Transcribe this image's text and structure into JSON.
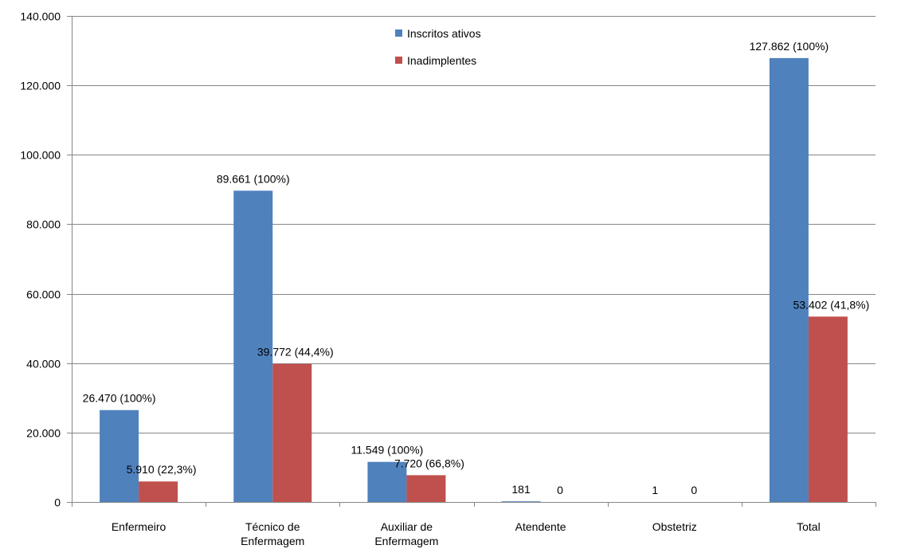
{
  "chart_data": {
    "type": "bar",
    "categories": [
      [
        "Enfermeiro"
      ],
      [
        "Técnico de",
        "Enfermagem"
      ],
      [
        "Auxiliar de",
        "Enfermagem"
      ],
      [
        "Atendente"
      ],
      [
        "Obstetriz"
      ],
      [
        "Total"
      ]
    ],
    "series": [
      {
        "name": "Inscritos ativos",
        "color": "#4F81BD",
        "values": [
          26470,
          89661,
          11549,
          181,
          1,
          127862
        ],
        "labels": [
          "26.470 (100%)",
          "89.661 (100%)",
          "11.549 (100%)",
          "181",
          "1",
          "127.862 (100%)"
        ]
      },
      {
        "name": "Inadimplentes",
        "color": "#C0504D",
        "values": [
          5910,
          39772,
          7720,
          0,
          0,
          53402
        ],
        "labels": [
          "5.910 (22,3%)",
          "39.772 (44,4%)",
          "7.720 (66,8%)",
          "0",
          "0",
          "53.402 (41,8%)"
        ]
      }
    ],
    "y_ticks": [
      {
        "value": 0,
        "label": "0"
      },
      {
        "value": 20000,
        "label": "20.000"
      },
      {
        "value": 40000,
        "label": "40.000"
      },
      {
        "value": 60000,
        "label": "60.000"
      },
      {
        "value": 80000,
        "label": "80.000"
      },
      {
        "value": 100000,
        "label": "100.000"
      },
      {
        "value": 120000,
        "label": "120.000"
      },
      {
        "value": 140000,
        "label": "140.000"
      }
    ],
    "ylim": [
      0,
      140000
    ],
    "title": "",
    "xlabel": "",
    "ylabel": "",
    "grid": true,
    "legend_position": "top-center"
  }
}
